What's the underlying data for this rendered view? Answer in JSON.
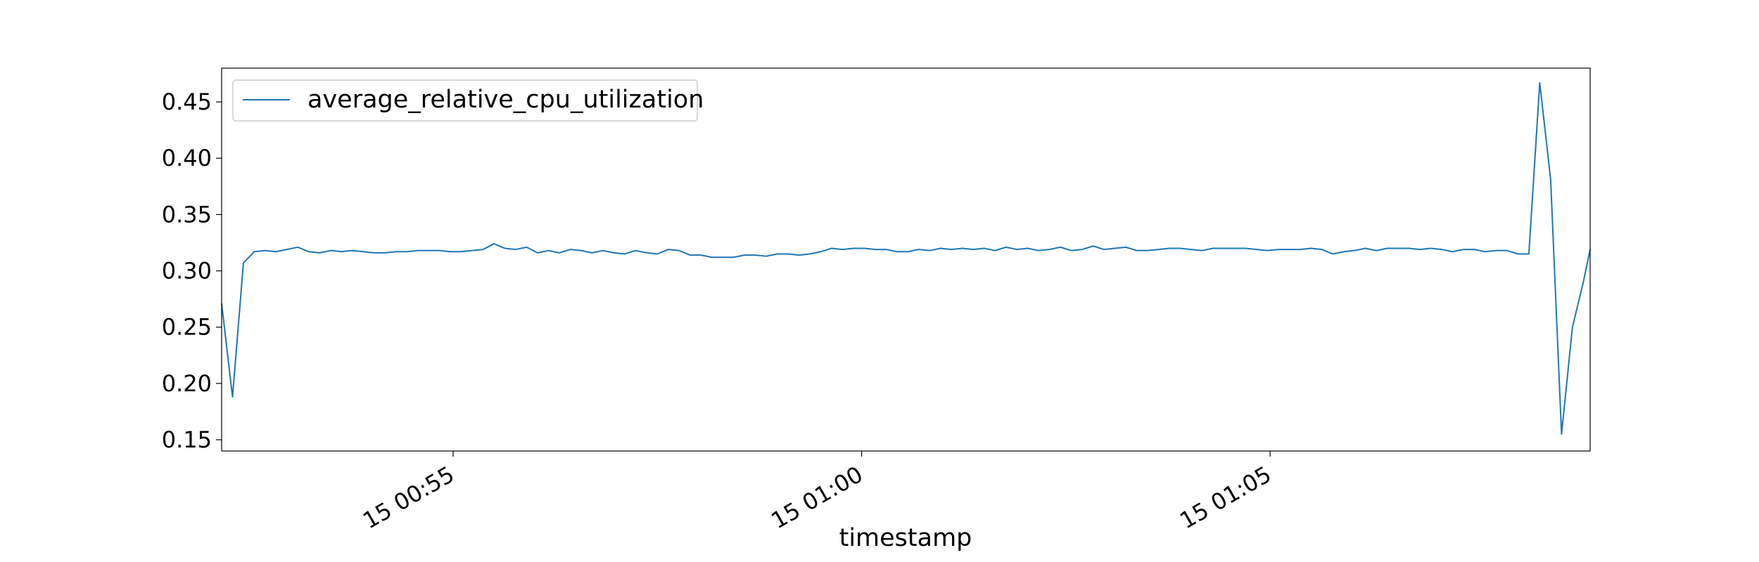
{
  "chart_data": {
    "type": "line",
    "title": "",
    "xlabel": "timestamp",
    "ylabel": "",
    "x_tick_labels": [
      "15 00:55",
      "15 01:00",
      "15 01:05"
    ],
    "y_ticks": [
      "0.15",
      "0.20",
      "0.25",
      "0.30",
      "0.35",
      "0.40",
      "0.45"
    ],
    "y_tick_values": [
      0.15,
      0.2,
      0.25,
      0.3,
      0.35,
      0.4,
      0.45
    ],
    "ylim": [
      0.14,
      0.48
    ],
    "xlim": [
      "15 00:52:10",
      "15 01:08:55"
    ],
    "x_tick_times": [
      "15 00:55:00",
      "15 01:00:00",
      "15 01:05:00"
    ],
    "grid": false,
    "legend_position": "top-left",
    "series": [
      {
        "name": "average_relative_cpu_utilization",
        "color": "#1f77b4",
        "x": [
          "15 00:52:10",
          "15 00:52:18",
          "15 00:52:26",
          "15 00:52:34",
          "15 00:52:42",
          "15 00:52:50",
          "15 00:52:58",
          "15 00:53:06",
          "15 00:53:14",
          "15 00:53:22",
          "15 00:53:30",
          "15 00:53:38",
          "15 00:53:46",
          "15 00:53:54",
          "15 00:54:02",
          "15 00:54:10",
          "15 00:54:18",
          "15 00:54:26",
          "15 00:54:34",
          "15 00:54:42",
          "15 00:54:50",
          "15 00:54:58",
          "15 00:55:06",
          "15 00:55:14",
          "15 00:55:22",
          "15 00:55:30",
          "15 00:55:38",
          "15 00:55:46",
          "15 00:55:54",
          "15 00:56:02",
          "15 00:56:10",
          "15 00:56:18",
          "15 00:56:26",
          "15 00:56:34",
          "15 00:56:42",
          "15 00:56:50",
          "15 00:56:58",
          "15 00:57:06",
          "15 00:57:14",
          "15 00:57:22",
          "15 00:57:30",
          "15 00:57:38",
          "15 00:57:46",
          "15 00:57:54",
          "15 00:58:02",
          "15 00:58:10",
          "15 00:58:18",
          "15 00:58:26",
          "15 00:58:34",
          "15 00:58:42",
          "15 00:58:50",
          "15 00:58:58",
          "15 00:59:06",
          "15 00:59:14",
          "15 00:59:22",
          "15 00:59:30",
          "15 00:59:38",
          "15 00:59:46",
          "15 00:59:54",
          "15 01:00:02",
          "15 01:00:10",
          "15 01:00:18",
          "15 01:00:26",
          "15 01:00:34",
          "15 01:00:42",
          "15 01:00:50",
          "15 01:00:58",
          "15 01:01:06",
          "15 01:01:14",
          "15 01:01:22",
          "15 01:01:30",
          "15 01:01:38",
          "15 01:01:46",
          "15 01:01:54",
          "15 01:02:02",
          "15 01:02:10",
          "15 01:02:18",
          "15 01:02:26",
          "15 01:02:34",
          "15 01:02:42",
          "15 01:02:50",
          "15 01:02:58",
          "15 01:03:06",
          "15 01:03:14",
          "15 01:03:22",
          "15 01:03:30",
          "15 01:03:38",
          "15 01:03:46",
          "15 01:03:54",
          "15 01:04:02",
          "15 01:04:10",
          "15 01:04:18",
          "15 01:04:26",
          "15 01:04:34",
          "15 01:04:42",
          "15 01:04:50",
          "15 01:04:58",
          "15 01:05:06",
          "15 01:05:14",
          "15 01:05:22",
          "15 01:05:30",
          "15 01:05:38",
          "15 01:05:46",
          "15 01:05:54",
          "15 01:06:02",
          "15 01:06:10",
          "15 01:06:18",
          "15 01:06:26",
          "15 01:06:34",
          "15 01:06:42",
          "15 01:06:50",
          "15 01:06:58",
          "15 01:07:06",
          "15 01:07:14",
          "15 01:07:22",
          "15 01:07:30",
          "15 01:07:38",
          "15 01:07:46",
          "15 01:07:54",
          "15 01:08:02",
          "15 01:08:10",
          "15 01:08:18",
          "15 01:08:26",
          "15 01:08:34",
          "15 01:08:42",
          "15 01:08:50",
          "15 01:08:55"
        ],
        "y": [
          0.271,
          0.188,
          0.307,
          0.317,
          0.318,
          0.317,
          0.319,
          0.321,
          0.317,
          0.316,
          0.318,
          0.317,
          0.318,
          0.317,
          0.316,
          0.316,
          0.317,
          0.317,
          0.318,
          0.318,
          0.318,
          0.317,
          0.317,
          0.318,
          0.319,
          0.324,
          0.32,
          0.319,
          0.321,
          0.316,
          0.318,
          0.316,
          0.319,
          0.318,
          0.316,
          0.318,
          0.316,
          0.315,
          0.318,
          0.316,
          0.315,
          0.319,
          0.318,
          0.314,
          0.314,
          0.312,
          0.312,
          0.312,
          0.314,
          0.314,
          0.313,
          0.315,
          0.315,
          0.314,
          0.315,
          0.317,
          0.32,
          0.319,
          0.32,
          0.32,
          0.319,
          0.319,
          0.317,
          0.317,
          0.319,
          0.318,
          0.32,
          0.319,
          0.32,
          0.319,
          0.32,
          0.318,
          0.321,
          0.319,
          0.32,
          0.318,
          0.319,
          0.321,
          0.318,
          0.319,
          0.322,
          0.319,
          0.32,
          0.321,
          0.318,
          0.318,
          0.319,
          0.32,
          0.32,
          0.319,
          0.318,
          0.32,
          0.32,
          0.32,
          0.32,
          0.319,
          0.318,
          0.319,
          0.319,
          0.319,
          0.32,
          0.319,
          0.315,
          0.317,
          0.318,
          0.32,
          0.318,
          0.32,
          0.32,
          0.32,
          0.319,
          0.32,
          0.319,
          0.317,
          0.319,
          0.319,
          0.317,
          0.318,
          0.318,
          0.315,
          0.315,
          0.467,
          0.381,
          0.155,
          0.25,
          0.29,
          0.319
        ]
      }
    ]
  }
}
